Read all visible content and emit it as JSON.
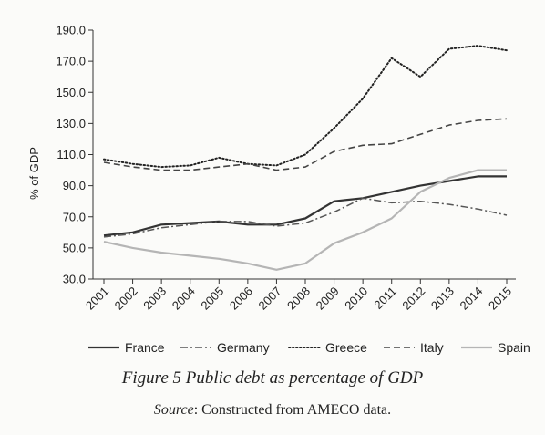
{
  "chart_data": {
    "type": "line",
    "ylabel": "% of GDP",
    "xlabel": "",
    "categories": [
      "2001",
      "2002",
      "2003",
      "2004",
      "2005",
      "2006",
      "2007",
      "2008",
      "2009",
      "2010",
      "2011",
      "2012",
      "2013",
      "2014",
      "2015"
    ],
    "ylim": [
      30,
      190
    ],
    "yticks": [
      "30.0",
      "50.0",
      "70.0",
      "90.0",
      "110.0",
      "130.0",
      "150.0",
      "170.0",
      "190.0"
    ],
    "grid": false,
    "legend_position": "bottom",
    "series": [
      {
        "name": "France",
        "style": "solid",
        "color": "#333333",
        "values": [
          58,
          60,
          65,
          66,
          67,
          65,
          65,
          69,
          80,
          82,
          86,
          90,
          93,
          96,
          96
        ]
      },
      {
        "name": "Germany",
        "style": "dashdot",
        "color": "#555555",
        "values": [
          57,
          59,
          63,
          65,
          67,
          67,
          64,
          66,
          73,
          82,
          79,
          80,
          78,
          75,
          71
        ]
      },
      {
        "name": "Greece",
        "style": "dotted",
        "color": "#222222",
        "values": [
          107,
          104,
          102,
          103,
          108,
          104,
          103,
          110,
          127,
          146,
          172,
          160,
          178,
          180,
          177
        ]
      },
      {
        "name": "Italy",
        "style": "dashed",
        "color": "#444444",
        "values": [
          105,
          102,
          100,
          100,
          102,
          104,
          100,
          102,
          112,
          116,
          117,
          123,
          129,
          132,
          133
        ]
      },
      {
        "name": "Spain",
        "style": "light",
        "color": "#b5b5b5",
        "values": [
          54,
          50,
          47,
          45,
          43,
          40,
          36,
          40,
          53,
          60,
          69,
          86,
          95,
          100,
          100
        ]
      }
    ]
  },
  "caption": {
    "title": "Figure 5  Public debt as percentage of GDP",
    "source_label": "Source",
    "source_text": ": Constructed from AMECO data."
  }
}
